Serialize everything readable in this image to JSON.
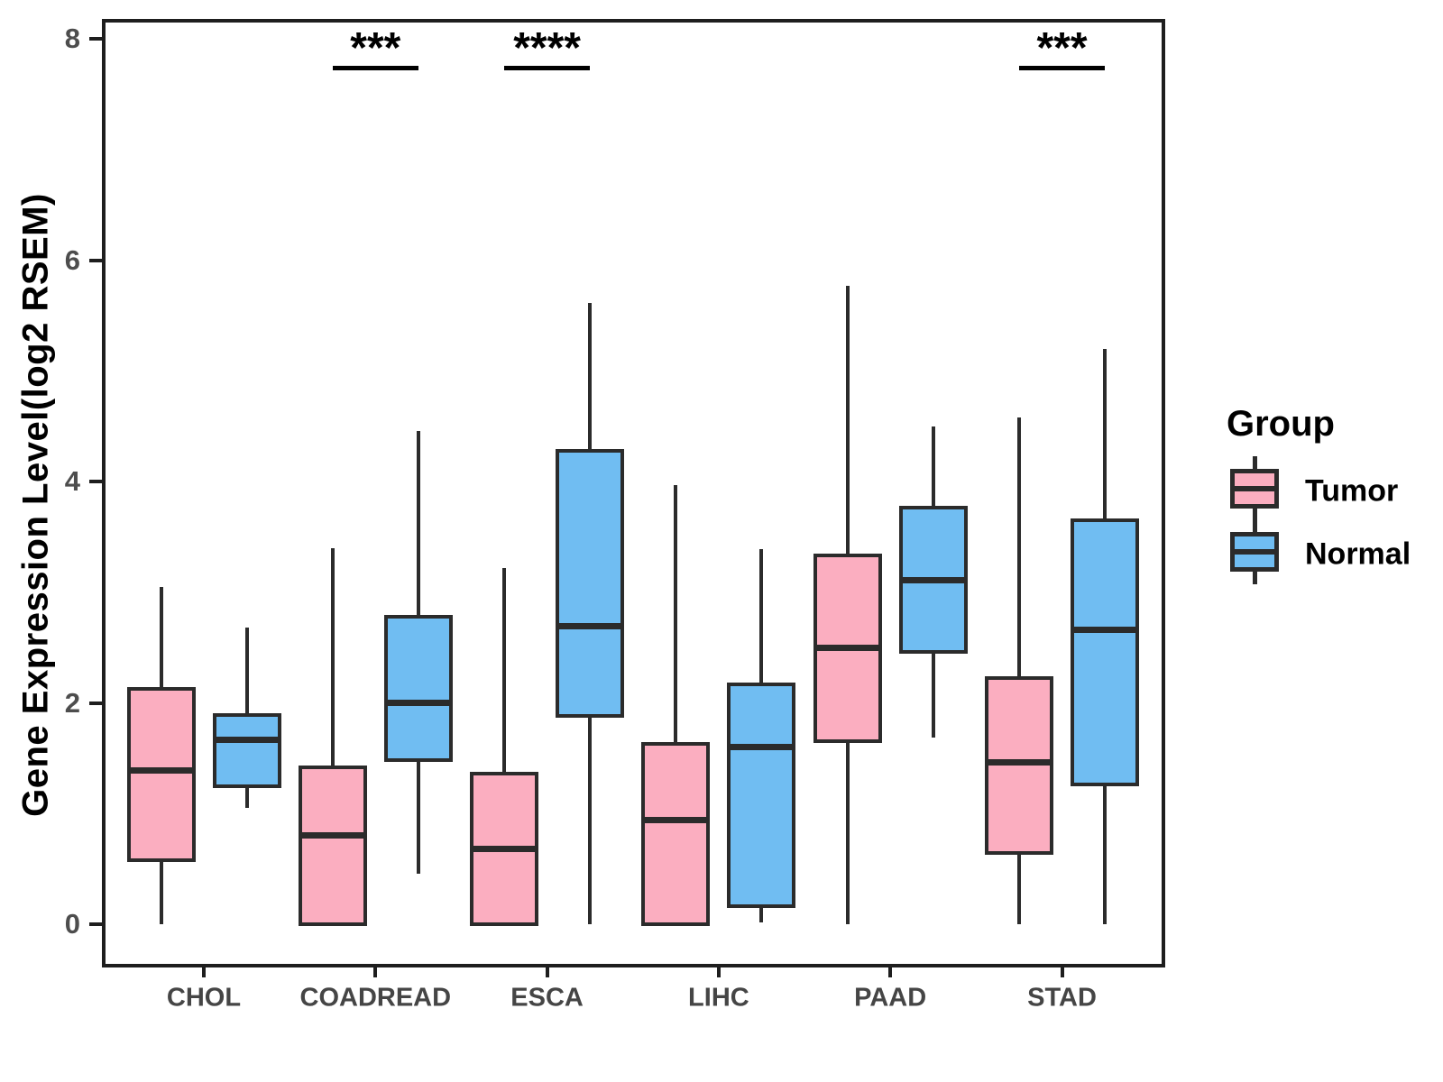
{
  "figure": {
    "y_axis_title": "Gene Expression Level(log2 RSEM)",
    "colors": {
      "tumor": "#FBAEC0",
      "normal": "#70BDF2",
      "stroke": "#2b2b2b",
      "panel_border": "#1e1e1e",
      "tick_text": "#4d4d4d",
      "significance": "#000000"
    },
    "legend": {
      "title": "Group",
      "items": [
        {
          "label": "Tumor",
          "color_key": "tumor"
        },
        {
          "label": "Normal",
          "color_key": "normal"
        }
      ]
    }
  },
  "chart_data": {
    "type": "boxplot",
    "title": "",
    "xlabel": "",
    "ylabel": "Gene Expression Level(log2 RSEM)",
    "categories": [
      "CHOL",
      "COADREAD",
      "ESCA",
      "LIHC",
      "PAAD",
      "STAD"
    ],
    "y_ticks": [
      0,
      2,
      4,
      6,
      8
    ],
    "ylim": [
      -0.4,
      8.2
    ],
    "grid": false,
    "legend_position": "right",
    "series": [
      {
        "name": "Tumor",
        "color_key": "tumor",
        "boxes": [
          {
            "category": "CHOL",
            "min": 0.0,
            "q1": 0.58,
            "median": 1.39,
            "q3": 2.13,
            "max": 3.05
          },
          {
            "category": "COADREAD",
            "min": 0.0,
            "q1": 0.0,
            "median": 0.8,
            "q3": 1.42,
            "max": 3.4
          },
          {
            "category": "ESCA",
            "min": 0.0,
            "q1": 0.0,
            "median": 0.68,
            "q3": 1.36,
            "max": 3.22
          },
          {
            "category": "LIHC",
            "min": 0.0,
            "q1": 0.0,
            "median": 0.94,
            "q3": 1.63,
            "max": 3.97
          },
          {
            "category": "PAAD",
            "min": 0.0,
            "q1": 1.65,
            "median": 2.5,
            "q3": 3.33,
            "max": 5.77
          },
          {
            "category": "STAD",
            "min": 0.0,
            "q1": 0.64,
            "median": 1.46,
            "q3": 2.22,
            "max": 4.58
          }
        ]
      },
      {
        "name": "Normal",
        "color_key": "normal",
        "boxes": [
          {
            "category": "CHOL",
            "min": 1.05,
            "q1": 1.25,
            "median": 1.67,
            "q3": 1.89,
            "max": 2.68
          },
          {
            "category": "COADREAD",
            "min": 0.46,
            "q1": 1.48,
            "median": 2.0,
            "q3": 2.78,
            "max": 4.46
          },
          {
            "category": "ESCA",
            "min": 0.0,
            "q1": 1.88,
            "median": 2.69,
            "q3": 4.28,
            "max": 5.61
          },
          {
            "category": "LIHC",
            "min": 0.02,
            "q1": 0.16,
            "median": 1.6,
            "q3": 2.17,
            "max": 3.39
          },
          {
            "category": "PAAD",
            "min": 1.69,
            "q1": 2.46,
            "median": 3.11,
            "q3": 3.76,
            "max": 4.5
          },
          {
            "category": "STAD",
            "min": 0.0,
            "q1": 1.26,
            "median": 2.66,
            "q3": 3.65,
            "max": 5.2
          }
        ]
      }
    ],
    "significance": [
      {
        "category": "COADREAD",
        "label": "***"
      },
      {
        "category": "ESCA",
        "label": "****"
      },
      {
        "category": "STAD",
        "label": "***"
      }
    ]
  }
}
